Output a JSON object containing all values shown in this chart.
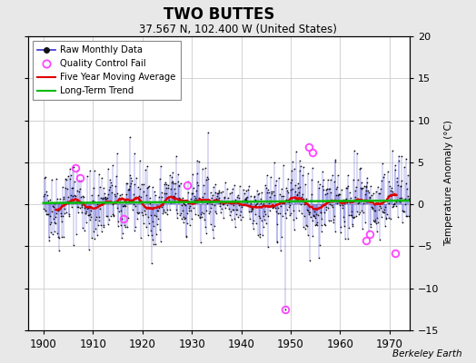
{
  "title": "TWO BUTTES",
  "subtitle": "37.567 N, 102.400 W (United States)",
  "ylabel": "Temperature Anomaly (°C)",
  "attribution": "Berkeley Earth",
  "xlim": [
    1897,
    1974
  ],
  "ylim": [
    -15,
    20
  ],
  "yticks": [
    -15,
    -10,
    -5,
    0,
    5,
    10,
    15,
    20
  ],
  "xticks": [
    1900,
    1910,
    1920,
    1930,
    1940,
    1950,
    1960,
    1970
  ],
  "background_color": "#e8e8e8",
  "plot_bg_color": "#ffffff",
  "raw_line_color": "#3333cc",
  "raw_dot_color": "#111111",
  "qc_fail_color": "#ff44ff",
  "moving_avg_color": "#dd0000",
  "trend_color": "#00bb00",
  "seed": 42,
  "n_years": 74,
  "start_year": 1900,
  "qc_fail_points": [
    [
      1906.4,
      4.3
    ],
    [
      1907.3,
      3.1
    ],
    [
      1916.2,
      -1.7
    ],
    [
      1929.0,
      2.3
    ],
    [
      1948.9,
      -12.5
    ],
    [
      1953.7,
      6.8
    ],
    [
      1954.5,
      6.2
    ],
    [
      1965.2,
      -4.3
    ],
    [
      1966.0,
      -3.5
    ],
    [
      1971.2,
      -5.8
    ]
  ]
}
